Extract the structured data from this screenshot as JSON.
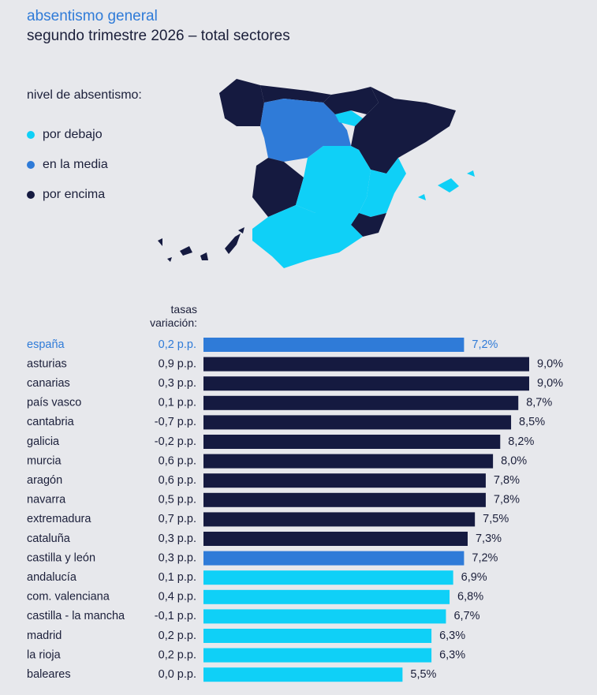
{
  "title": "absentismo general",
  "subtitle": "segundo trimestre 2026 – total sectores",
  "legend": {
    "title": "nivel de absentismo:",
    "items": [
      {
        "label": "por debajo",
        "color": "#0fd0f7"
      },
      {
        "label": "en la media",
        "color": "#2f7bd8"
      },
      {
        "label": "por encima",
        "color": "#151a40"
      }
    ]
  },
  "column_header": "tasas variación:",
  "column_header_lines": [
    "tasas",
    "variación:"
  ],
  "colors": {
    "below": "#0fd0f7",
    "average": "#2f7bd8",
    "above": "#151a40",
    "highlight_text": "#2f7bd8"
  },
  "chart_data": {
    "type": "bar",
    "orientation": "horizontal",
    "title": "absentismo general",
    "subtitle": "segundo trimestre 2026 – total sectores",
    "categories": [
      "españa",
      "asturias",
      "canarias",
      "país vasco",
      "cantabria",
      "galicia",
      "murcia",
      "aragón",
      "navarra",
      "extremadura",
      "cataluña",
      "castilla y león",
      "andalucía",
      "com. valenciana",
      "castilla - la mancha",
      "madrid",
      "la rioja",
      "baleares"
    ],
    "values": [
      7.2,
      9.0,
      9.0,
      8.7,
      8.5,
      8.2,
      8.0,
      7.8,
      7.8,
      7.5,
      7.3,
      7.2,
      6.9,
      6.8,
      6.7,
      6.3,
      6.3,
      5.5
    ],
    "value_labels": [
      "7,2%",
      "9,0%",
      "9,0%",
      "8,7%",
      "8,5%",
      "8,2%",
      "8,0%",
      "7,8%",
      "7,8%",
      "7,5%",
      "7,3%",
      "7,2%",
      "6,9%",
      "6,8%",
      "6,7%",
      "6,3%",
      "6,3%",
      "5,5%"
    ],
    "variation_labels": [
      "0,2 p.p.",
      "0,9 p.p.",
      "0,3 p.p.",
      "0,1 p.p.",
      "-0,7 p.p.",
      "-0,2 p.p.",
      "0,6 p.p.",
      "0,6 p.p.",
      "0,5 p.p.",
      "0,7 p.p.",
      "0,3 p.p.",
      "0,3 p.p.",
      "0,1 p.p.",
      "0,4 p.p.",
      "-0,1 p.p.",
      "0,2 p.p.",
      "0,2 p.p.",
      "0,0 p.p."
    ],
    "levels": [
      "average",
      "above",
      "above",
      "above",
      "above",
      "above",
      "above",
      "above",
      "above",
      "above",
      "above",
      "average",
      "below",
      "below",
      "below",
      "below",
      "below",
      "below"
    ],
    "xlim": [
      0,
      9.0
    ],
    "grid": false
  }
}
